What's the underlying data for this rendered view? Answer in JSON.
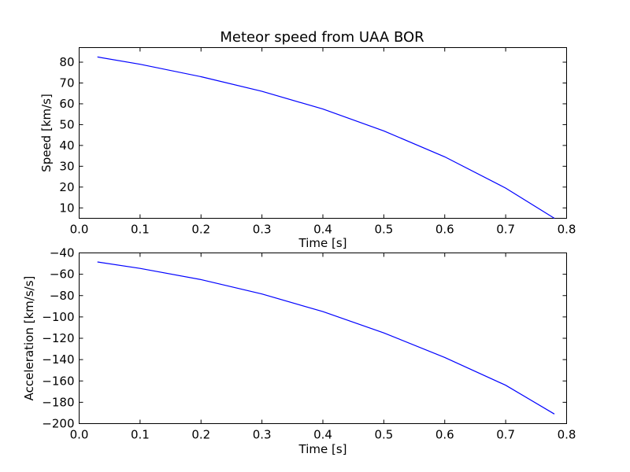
{
  "chart_data": [
    {
      "type": "line",
      "title": "Meteor speed from  UAA BOR",
      "xlabel": "Time [s]",
      "ylabel": "Speed [km/s]",
      "xlim": [
        0.0,
        0.8
      ],
      "ylim": [
        5,
        87
      ],
      "xticks": [
        0.0,
        0.1,
        0.2,
        0.3,
        0.4,
        0.5,
        0.6,
        0.7,
        0.8
      ],
      "xtick_labels": [
        "0.0",
        "0.1",
        "0.2",
        "0.3",
        "0.4",
        "0.5",
        "0.6",
        "0.7",
        "0.8"
      ],
      "yticks": [
        10,
        20,
        30,
        40,
        50,
        60,
        70,
        80
      ],
      "ytick_labels": [
        "10",
        "20",
        "30",
        "40",
        "50",
        "60",
        "70",
        "80"
      ],
      "grid": false,
      "series": [
        {
          "color": "#0000ff",
          "x": [
            0.03,
            0.1,
            0.2,
            0.3,
            0.4,
            0.5,
            0.6,
            0.7,
            0.78
          ],
          "y": [
            82.5,
            79.0,
            73.0,
            66.0,
            57.5,
            47.0,
            34.5,
            19.5,
            5.0
          ]
        }
      ]
    },
    {
      "type": "line",
      "title": "",
      "xlabel": "Time [s]",
      "ylabel": "Acceleration [km/s/s]",
      "xlim": [
        0.0,
        0.8
      ],
      "ylim": [
        -200,
        -40
      ],
      "xticks": [
        0.0,
        0.1,
        0.2,
        0.3,
        0.4,
        0.5,
        0.6,
        0.7,
        0.8
      ],
      "xtick_labels": [
        "0.0",
        "0.1",
        "0.2",
        "0.3",
        "0.4",
        "0.5",
        "0.6",
        "0.7",
        "0.8"
      ],
      "yticks": [
        -40,
        -60,
        -80,
        -100,
        -120,
        -140,
        -160,
        -180,
        -200
      ],
      "ytick_labels": [
        "−40",
        "−60",
        "−80",
        "−100",
        "−120",
        "−140",
        "−160",
        "−180",
        "−200"
      ],
      "grid": false,
      "series": [
        {
          "color": "#0000ff",
          "x": [
            0.03,
            0.1,
            0.2,
            0.3,
            0.4,
            0.5,
            0.6,
            0.7,
            0.78
          ],
          "y": [
            -48.5,
            -54.5,
            -65.0,
            -78.5,
            -95.0,
            -115.0,
            -138.0,
            -164.0,
            -191.0
          ]
        }
      ]
    }
  ]
}
